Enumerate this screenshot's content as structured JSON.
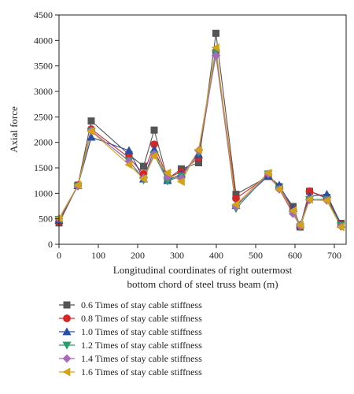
{
  "chart_data": {
    "type": "line",
    "title": "",
    "xlabel_lines": [
      "Longitudinal coordinates of right outermost",
      "bottom chord of steel truss beam (m)"
    ],
    "ylabel": "Axial force",
    "xlim": [
      0,
      730
    ],
    "ylim": [
      0,
      4500
    ],
    "xticks": [
      0,
      100,
      200,
      300,
      400,
      500,
      600,
      700
    ],
    "yticks": [
      0,
      500,
      1000,
      1500,
      2000,
      2500,
      3000,
      3500,
      4000,
      4500
    ],
    "grid": false,
    "legend_position": "bottom",
    "x": [
      0,
      48,
      82,
      178,
      215,
      242,
      276,
      311,
      355,
      399,
      450,
      532,
      560,
      595,
      613,
      637,
      681,
      717
    ],
    "series": [
      {
        "name": "0.6 Times of stay cable stiffness",
        "color": "#555555",
        "marker": "square",
        "values": [
          420,
          1160,
          2420,
          1760,
          1530,
          2240,
          1280,
          1480,
          1600,
          4140,
          980,
          1330,
          1130,
          740,
          340,
          1040,
          920,
          410
        ]
      },
      {
        "name": "0.8 Times of stay cable stiffness",
        "color": "#d62728",
        "marker": "circle",
        "values": [
          440,
          1160,
          2260,
          1700,
          1380,
          1960,
          1300,
          1420,
          1700,
          3780,
          900,
          1340,
          1100,
          680,
          350,
          1040,
          900,
          400
        ]
      },
      {
        "name": "1.0 Times of stay cable stiffness",
        "color": "#2b4ea6",
        "marker": "triangle-up",
        "values": [
          470,
          1150,
          2100,
          1840,
          1280,
          1860,
          1250,
          1380,
          1760,
          3760,
          760,
          1340,
          1160,
          700,
          380,
          940,
          980,
          390
        ]
      },
      {
        "name": "1.2 Times of stay cable stiffness",
        "color": "#2a9d6a",
        "marker": "triangle-down",
        "values": [
          490,
          1140,
          2220,
          1640,
          1260,
          1760,
          1240,
          1340,
          1800,
          3760,
          700,
          1380,
          1080,
          620,
          340,
          880,
          880,
          370
        ]
      },
      {
        "name": "1.4 Times of stay cable stiffness",
        "color": "#a56bb8",
        "marker": "diamond",
        "values": [
          500,
          1140,
          2230,
          1630,
          1300,
          1770,
          1320,
          1300,
          1840,
          3700,
          740,
          1380,
          1080,
          600,
          360,
          870,
          860,
          350
        ]
      },
      {
        "name": "1.6 Times of stay cable stiffness",
        "color": "#d4a216",
        "marker": "triangle-left",
        "values": [
          510,
          1160,
          2220,
          1560,
          1290,
          1730,
          1400,
          1230,
          1850,
          3860,
          780,
          1400,
          1080,
          660,
          380,
          880,
          860,
          340
        ]
      }
    ]
  }
}
